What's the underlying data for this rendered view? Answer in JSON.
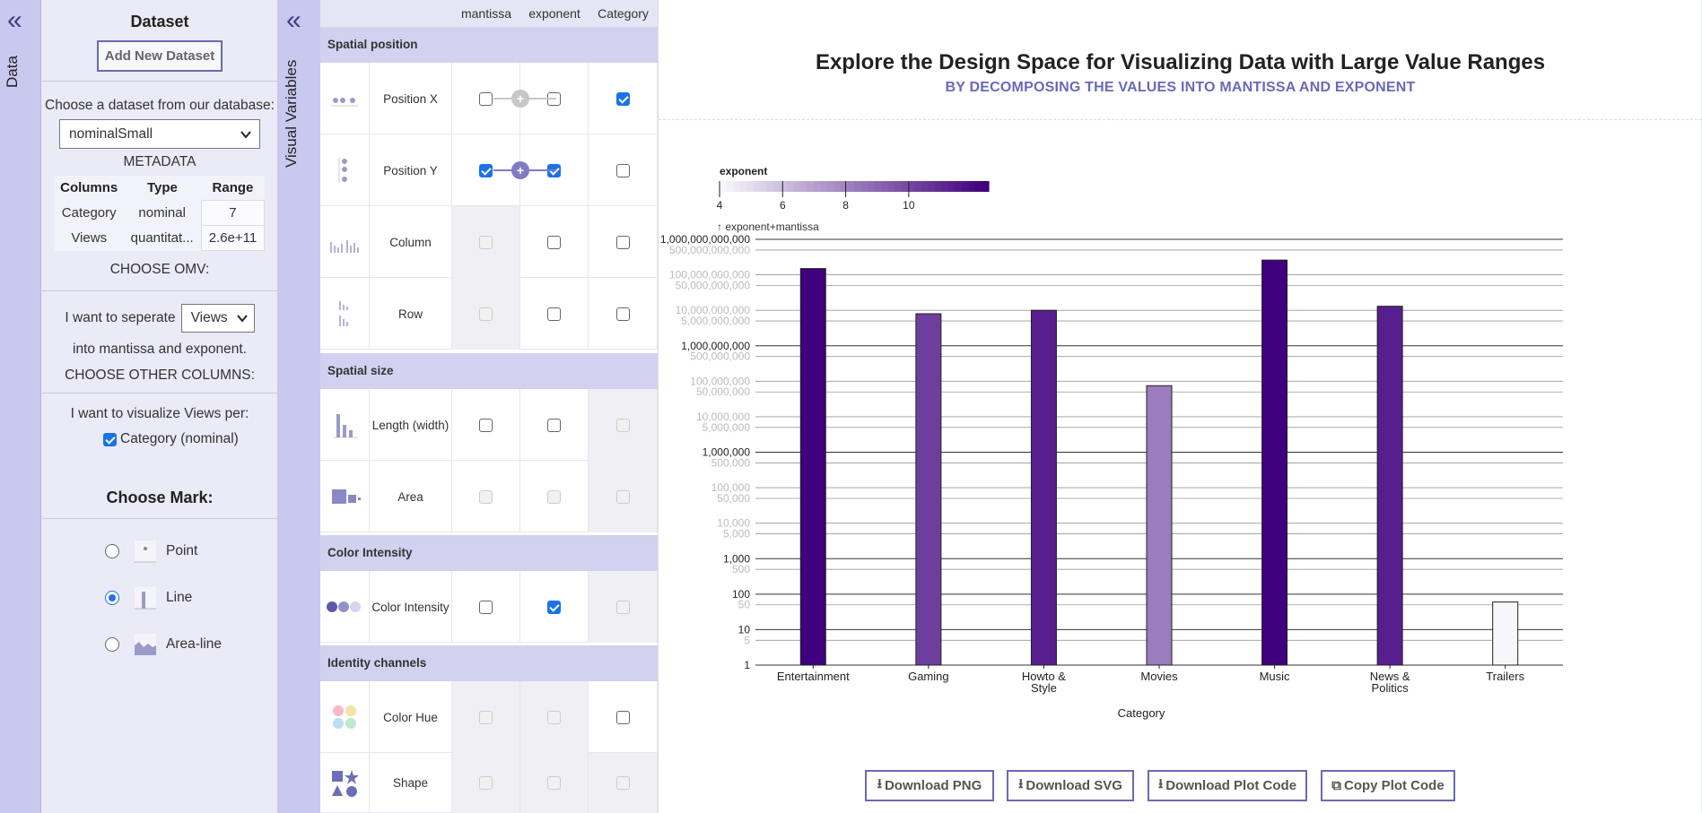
{
  "data_panel": {
    "label": "Data",
    "collapse_icon": "double-chevron-left-icon"
  },
  "dataset": {
    "title": "Dataset",
    "add_button": "Add New Dataset",
    "choose_text": "Choose a dataset from our database:",
    "selected_dataset": "nominalSmall",
    "metadata_title": "METADATA",
    "metadata_headers": [
      "Columns",
      "Type",
      "Range"
    ],
    "metadata_rows": [
      [
        "Category",
        "nominal",
        "7"
      ],
      [
        "Views",
        "quantitat...",
        "2.6e+11"
      ]
    ],
    "choose_omv": "CHOOSE OMV:",
    "separate_prefix": "I want to seperate",
    "separate_value": "Views",
    "separate_suffix": "into mantissa and exponent.",
    "choose_other": "CHOOSE OTHER COLUMNS:",
    "visualize_text": "I want to visualize Views per:",
    "column_option": "Category (nominal)",
    "choose_mark": "Choose Mark:",
    "marks": [
      {
        "label": "Point",
        "selected": false,
        "icon": "point-mark-icon"
      },
      {
        "label": "Line",
        "selected": true,
        "icon": "line-mark-icon"
      },
      {
        "label": "Area-line",
        "selected": false,
        "icon": "area-line-mark-icon"
      }
    ]
  },
  "visual_variables": {
    "label": "Visual Variables",
    "collapse_icon": "double-chevron-left-icon",
    "col_headers": [
      "mantissa",
      "exponent",
      "Category"
    ],
    "sections": [
      {
        "title": "Spatial position"
      },
      {
        "title": "Spatial size"
      },
      {
        "title": "Color Intensity"
      },
      {
        "title": "Identity channels"
      }
    ],
    "rows": [
      {
        "label": "Position X",
        "icon": "position-x-icon"
      },
      {
        "label": "Position Y",
        "icon": "position-y-icon"
      },
      {
        "label": "Column",
        "icon": "column-icon"
      },
      {
        "label": "Row",
        "icon": "row-icon"
      },
      {
        "label": "Length (width)",
        "icon": "length-icon"
      },
      {
        "label": "Area",
        "icon": "area-icon"
      },
      {
        "label": "Color Intensity",
        "icon": "color-intensity-icon"
      },
      {
        "label": "Color Hue",
        "icon": "color-hue-icon"
      },
      {
        "label": "Shape",
        "icon": "shape-icon"
      }
    ]
  },
  "chart_header": {
    "title": "Explore the Design Space for Visualizing Data with Large Value Ranges",
    "subtitle": "BY DECOMPOSING THE VALUES INTO MANTISSA AND EXPONENT"
  },
  "chart_data": {
    "type": "bar",
    "xlabel": "Category",
    "ylabel": "↑ exponent+mantissa",
    "yscale": "log",
    "ylim": [
      1,
      1000000000000
    ],
    "ytick_labels": [
      "1",
      "5",
      "10",
      "50",
      "100",
      "500",
      "1,000",
      "5,000",
      "10,000",
      "50,000",
      "100,000",
      "500,000",
      "1,000,000",
      "5,000,000",
      "10,000,000",
      "50,000,000",
      "100,000,000",
      "500,000,000",
      "1,000,000,000",
      "5,000,000,000",
      "10,000,000,000",
      "50,000,000,000",
      "100,000,000,000",
      "500,000,000,000",
      "1,000,000,000,000"
    ],
    "categories": [
      "Entertainment",
      "Gaming",
      "Howto & Style",
      "Movies",
      "Music",
      "News & Politics",
      "Trailers"
    ],
    "category_lines": [
      [
        "Entertainment"
      ],
      [
        "Gaming"
      ],
      [
        "Howto &",
        "Style"
      ],
      [
        "Movies"
      ],
      [
        "Music"
      ],
      [
        "News &",
        "Politics"
      ],
      [
        "Trailers"
      ]
    ],
    "values": [
      150000000000,
      8000000000,
      10000000000,
      75000000,
      260000000000,
      13000000000,
      60
    ],
    "exponents": [
      11,
      9,
      10,
      7,
      11,
      10,
      1
    ],
    "legend": {
      "title": "exponent",
      "ticks": [
        "4",
        "6",
        "8",
        "10"
      ],
      "range": [
        3,
        11
      ]
    },
    "colors": {
      "low": "#f7f7fb",
      "high": "#3f007d"
    }
  },
  "downloads": [
    {
      "label": "Download PNG",
      "icon": "download-icon"
    },
    {
      "label": "Download SVG",
      "icon": "download-icon"
    },
    {
      "label": "Download Plot Code",
      "icon": "download-icon"
    },
    {
      "label": "Copy Plot Code",
      "icon": "copy-icon"
    }
  ]
}
